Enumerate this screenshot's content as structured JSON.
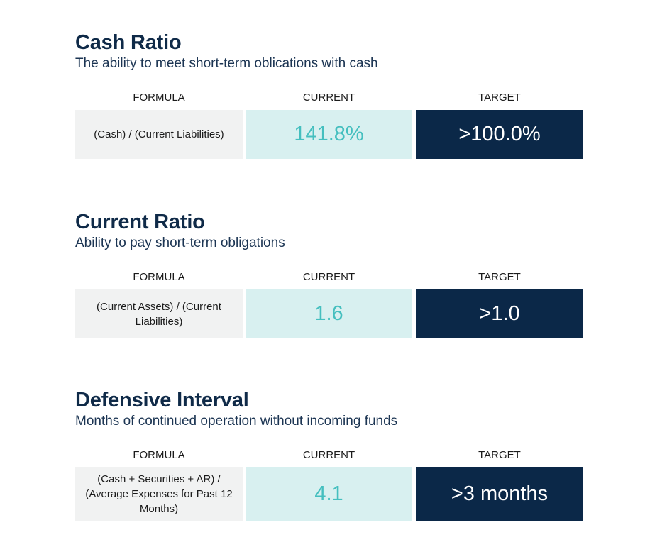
{
  "column_headers": {
    "formula": "FORMULA",
    "current": "CURRENT",
    "target": "TARGET"
  },
  "sections": [
    {
      "title": "Cash Ratio",
      "subtitle": "The ability to meet short-term oblications with cash",
      "formula": "(Cash) / (Current Liabilities)",
      "current": "141.8%",
      "target": ">100.0%"
    },
    {
      "title": "Current Ratio",
      "subtitle": "Ability to pay short-term obligations",
      "formula": "(Current Assets) / (Current Liabilities)",
      "current": "1.6",
      "target": ">1.0"
    },
    {
      "title": "Defensive Interval",
      "subtitle": "Months of continued operation without incoming funds",
      "formula": "(Cash + Securities + AR) / (Average Expenses for Past 12 Months)",
      "current": "4.1",
      "target": ">3 months"
    }
  ],
  "colors": {
    "title": "#0f2a48",
    "formula_bg": "#f1f2f2",
    "current_bg": "#d8f0f0",
    "current_text": "#45bfbf",
    "target_bg": "#0b2848",
    "target_text": "#ffffff"
  }
}
